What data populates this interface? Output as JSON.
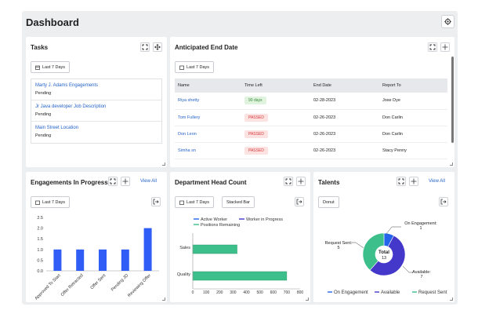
{
  "page": {
    "title": "Dashboard"
  },
  "colors": {
    "link": "#2563c9",
    "passed_bg": "#fde2e2",
    "passed_text": "#d53a3a",
    "days_bg": "#dff3df",
    "days_text": "#3a8a3a",
    "active": "#2563eb",
    "progress": "#4338ca",
    "remaining": "#3cbf8a",
    "bar": "#2f5df5"
  },
  "tasks": {
    "title": "Tasks",
    "filter": "Last 7 Days",
    "items": [
      {
        "name": "Marty J. Adams Engagements",
        "status": "Pending"
      },
      {
        "name": "Jr Java developer Job Description",
        "status": "Pending"
      },
      {
        "name": "Main Street Location",
        "status": "Pending"
      }
    ]
  },
  "end_date": {
    "title": "Anticipated End Date",
    "filter": "Last 7 Days",
    "columns": [
      "Name",
      "Time Left",
      "End Date",
      "Report To"
    ],
    "rows": [
      {
        "name": "Riya shetty",
        "time_left": "90 days",
        "end_date": "02-28-2023",
        "report_to": "Jose Dye",
        "kind": "days"
      },
      {
        "name": "Tom Fullery",
        "time_left": "PASSED",
        "end_date": "02-26-2023",
        "report_to": "Don Carlin",
        "kind": "passed"
      },
      {
        "name": "Don Leon",
        "time_left": "PASSED",
        "end_date": "02-26-2023",
        "report_to": "Don Carlin",
        "kind": "passed"
      },
      {
        "name": "Simha sn",
        "time_left": "PASSED",
        "end_date": "02-26-2023",
        "report_to": "Stacy Penny",
        "kind": "passed"
      }
    ]
  },
  "engagements": {
    "title": "Engagements In Progress",
    "filter": "Last 7 Days",
    "view_all": "View All"
  },
  "dept": {
    "title": "Department Head Count",
    "filter": "Last 7 Days",
    "mode": "Stacked Bar"
  },
  "talents": {
    "title": "Talents",
    "mode": "Donut",
    "view_all": "View All",
    "center_label": "Total",
    "center_value": "13"
  },
  "chart_data": [
    {
      "type": "bar",
      "categories": [
        "Approved To Start",
        "Offer Retracted",
        "Offer Sent",
        "Pending JD",
        "Reviewing Offer"
      ],
      "values": [
        1,
        1,
        1,
        1,
        2
      ],
      "ylim": [
        0,
        2.5
      ],
      "yticks": [
        "0.0",
        "0.5",
        "1.0",
        "1.5",
        "2.0",
        "2.5"
      ]
    },
    {
      "type": "bar",
      "orientation": "horizontal",
      "categories": [
        "Sales",
        "Quality"
      ],
      "series": [
        {
          "name": "Active Worker",
          "values": [
            0,
            0
          ]
        },
        {
          "name": "Worker in Progress",
          "values": [
            0,
            0
          ]
        },
        {
          "name": "Positions Remaining",
          "values": [
            330,
            700
          ]
        }
      ],
      "xlim": [
        0,
        800
      ],
      "xticks": [
        "0",
        "100",
        "200",
        "300",
        "400",
        "500",
        "600",
        "700",
        "800"
      ]
    },
    {
      "type": "pie",
      "style": "donut",
      "slices": [
        {
          "name": "On Engagement",
          "value": 1
        },
        {
          "name": "Available",
          "value": 7
        },
        {
          "name": "Request Sent",
          "value": 5
        }
      ],
      "labels": [
        {
          "text": "On Engagement:",
          "value": "1"
        },
        {
          "text": "Available:",
          "value": "7"
        },
        {
          "text": "Request Sent:",
          "value": "5"
        }
      ]
    }
  ]
}
